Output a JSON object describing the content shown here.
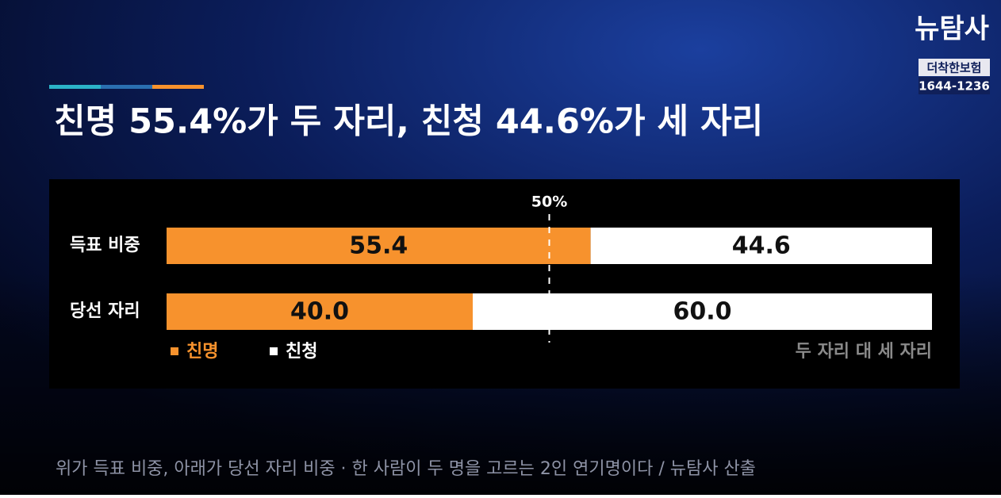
{
  "logo": {
    "name": "뉴탐사",
    "sponsor": "더착한보험",
    "phone": "1644-1236"
  },
  "chart_data": {
    "type": "stacked_bar_horizontal",
    "title": "친명 55.4%가 두 자리, 친청 44.6%가 세 자리",
    "categories": [
      "득표 비중",
      "당선 자리"
    ],
    "series": [
      {
        "name": "친명",
        "color": "#f7922d",
        "values": [
          55.4,
          40.0
        ],
        "value_labels": [
          "55.4",
          "40.0"
        ]
      },
      {
        "name": "친청",
        "color": "#ffffff",
        "values": [
          44.6,
          60.0
        ],
        "value_labels": [
          "44.6",
          "60.0"
        ]
      }
    ],
    "xlim": [
      0,
      100
    ],
    "reference_line": {
      "value": 50,
      "label": "50%"
    },
    "note": "두 자리 대 세 자리",
    "source": "위가 득표 비중, 아래가 당선 자리 비중 · 한 사람이 두 명을 고르는 2인 연기명이다 / 뉴탐사 산출"
  }
}
